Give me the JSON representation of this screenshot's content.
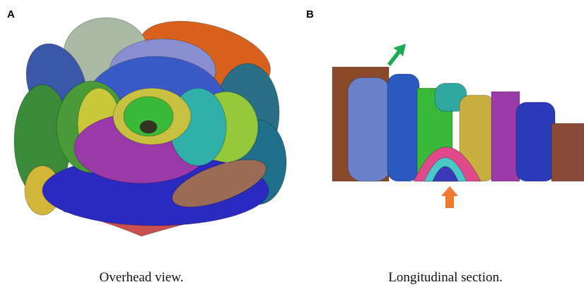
{
  "panels": [
    {
      "label": "A",
      "caption": "Overhead view."
    },
    {
      "label": "B",
      "caption": "Longitudinal section."
    }
  ]
}
